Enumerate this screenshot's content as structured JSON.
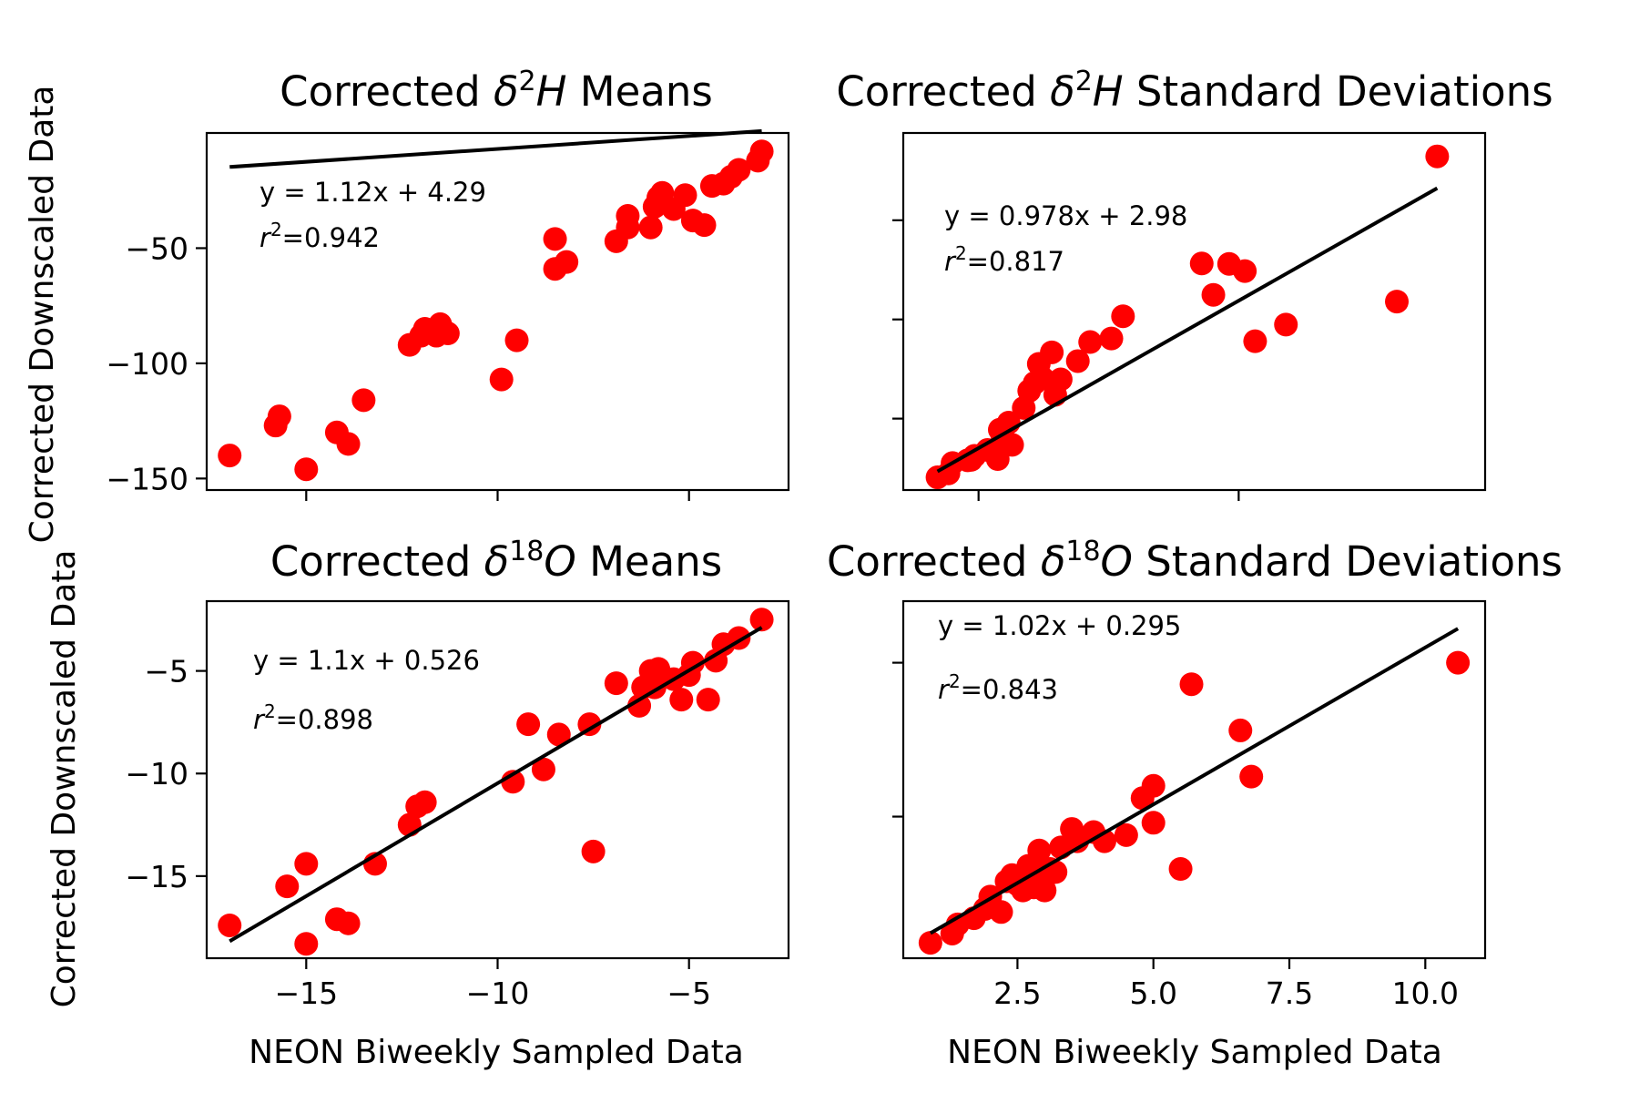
{
  "chart_data": [
    {
      "type": "scatter",
      "title_pre": "Corrected ",
      "title_var": "δ",
      "title_sup": "2",
      "title_isotope": "H",
      "title_post": " Means",
      "xlabel": "",
      "ylabel": "Corrected Downscaled Data",
      "xlim": [
        -17.6,
        -2.4
      ],
      "ylim": [
        -155,
        0
      ],
      "xticks": [
        -15,
        -10,
        -5
      ],
      "xtick_labels": [
        "",
        "",
        ""
      ],
      "yticks": [
        -50,
        -100,
        -150
      ],
      "ytick_labels": [
        "−50",
        "−100",
        "−150"
      ],
      "equation": "y = 1.12x + 4.29",
      "r2_label": "r",
      "r2_sup": "2",
      "r2_value": "=0.942",
      "fit": {
        "slope": 1.12,
        "intercept": 4.29,
        "x_range": [
          -17.0,
          -3.1
        ]
      },
      "x": [
        -17.0,
        -15.8,
        -15.7,
        -15.0,
        -14.2,
        -13.9,
        -13.5,
        -12.3,
        -12.0,
        -11.9,
        -11.6,
        -11.5,
        -11.3,
        -9.9,
        -9.5,
        -8.5,
        -8.5,
        -8.2,
        -6.9,
        -6.6,
        -6.6,
        -6.0,
        -5.9,
        -5.8,
        -5.7,
        -5.4,
        -5.1,
        -4.9,
        -4.6,
        -4.4,
        -4.1,
        -3.9,
        -3.7,
        -3.2,
        -3.1
      ],
      "y": [
        -140,
        -127,
        -123,
        -146,
        -130,
        -135,
        -116,
        -92,
        -88,
        -85,
        -88,
        -83,
        -87,
        -107,
        -90,
        -59,
        -46,
        -56,
        -47,
        -41,
        -36,
        -41,
        -32,
        -28,
        -26,
        -33,
        -27,
        -38,
        -40,
        -23,
        -22,
        -19,
        -16,
        -12,
        -8
      ]
    },
    {
      "type": "scatter",
      "title_pre": "Corrected ",
      "title_var": "δ",
      "title_sup": "2",
      "title_isotope": "H",
      "title_post": " Standard Deviations",
      "xlabel": "",
      "ylabel": "",
      "xlim": [
        8,
        93
      ],
      "ylim": [
        11,
        101
      ],
      "xticks": [
        19,
        57
      ],
      "xtick_labels": [
        "",
        ""
      ],
      "yticks": [
        29,
        54,
        79
      ],
      "ytick_labels": [
        "",
        "",
        ""
      ],
      "equation": "y = 0.978x + 2.98",
      "r2_label": "r",
      "r2_sup": "2",
      "r2_value": "=0.817",
      "fit": {
        "slope": 0.978,
        "intercept": 2.98,
        "x_range": [
          13,
          86
        ]
      },
      "x": [
        13,
        14.6,
        15.2,
        17.4,
        17.9,
        18.4,
        20.3,
        21.8,
        22.1,
        22.5,
        23.4,
        23.9,
        25.6,
        26.4,
        27.2,
        27.8,
        28.4,
        29.7,
        30.2,
        31.0,
        33.5,
        35.3,
        38.4,
        40.1,
        51.6,
        53.3,
        55.6,
        57.9,
        59.4,
        63.9,
        80.1,
        86.0
      ],
      "y": [
        14.2,
        15.2,
        17.8,
        18.5,
        18.6,
        19.6,
        21.1,
        18.8,
        26.2,
        24.4,
        28.0,
        22.4,
        31.7,
        36.0,
        38.0,
        42.8,
        39.1,
        45.7,
        35.0,
        38.9,
        43.5,
        48.3,
        49.2,
        54.8,
        68.1,
        60.2,
        68.0,
        66.2,
        48.5,
        52.7,
        58.5,
        95.1
      ]
    },
    {
      "type": "scatter",
      "title_pre": "Corrected ",
      "title_var": "δ",
      "title_sup": "18",
      "title_isotope": "O",
      "title_post": " Means",
      "xlabel": "NEON Biweekly Sampled Data",
      "ylabel": "Corrected Downscaled Data",
      "xlim": [
        -17.6,
        -2.4
      ],
      "ylim": [
        -19,
        -1.6
      ],
      "xticks": [
        -15,
        -10,
        -5
      ],
      "xtick_labels": [
        "−15",
        "−10",
        "−5"
      ],
      "yticks": [
        -5,
        -10,
        -15
      ],
      "ytick_labels": [
        "−5",
        "−10",
        "−15"
      ],
      "equation": "y = 1.1x + 0.526",
      "r2_label": "r",
      "r2_sup": "2",
      "r2_value": "=0.898",
      "fit": {
        "slope": 1.1,
        "intercept": 0.526,
        "x_range": [
          -17.0,
          -3.1
        ]
      },
      "x": [
        -17.0,
        -15.5,
        -15.0,
        -15.0,
        -14.2,
        -13.9,
        -13.2,
        -12.3,
        -12.1,
        -11.9,
        -9.6,
        -9.2,
        -8.8,
        -8.4,
        -7.6,
        -7.5,
        -6.9,
        -6.3,
        -6.2,
        -6.0,
        -5.9,
        -5.8,
        -5.4,
        -5.2,
        -5.0,
        -4.9,
        -4.5,
        -4.3,
        -4.1,
        -3.7,
        -3.1
      ],
      "y": [
        -17.4,
        -15.5,
        -14.4,
        -18.3,
        -17.1,
        -17.3,
        -14.4,
        -12.5,
        -11.6,
        -11.4,
        -10.4,
        -7.6,
        -9.8,
        -8.1,
        -7.6,
        -13.8,
        -5.6,
        -6.7,
        -5.8,
        -5.0,
        -5.8,
        -4.9,
        -5.4,
        -6.4,
        -5.2,
        -4.6,
        -6.4,
        -4.5,
        -3.7,
        -3.4,
        -2.5
      ]
    },
    {
      "type": "scatter",
      "title_pre": "Corrected ",
      "title_var": "δ",
      "title_sup": "18",
      "title_isotope": "O",
      "title_post": " Standard Deviations",
      "xlabel": "NEON Biweekly Sampled Data",
      "ylabel": "",
      "xlim": [
        0.4,
        11.1
      ],
      "ylim": [
        0.4,
        12.0
      ],
      "xticks": [
        2.5,
        5.0,
        7.5,
        10.0
      ],
      "xtick_labels": [
        "2.5",
        "5.0",
        "7.5",
        "10.0"
      ],
      "yticks": [
        5.0,
        10.0
      ],
      "ytick_labels": [
        "",
        ""
      ],
      "equation": "y = 1.02x + 0.295",
      "r2_label": "r",
      "r2_sup": "2",
      "r2_value": "=0.843",
      "fit": {
        "slope": 1.02,
        "intercept": 0.295,
        "x_range": [
          0.9,
          10.6
        ]
      },
      "x": [
        0.9,
        1.3,
        1.4,
        1.7,
        1.9,
        2.0,
        2.2,
        2.3,
        2.4,
        2.5,
        2.6,
        2.7,
        2.8,
        2.8,
        2.9,
        3.0,
        3.0,
        3.1,
        3.2,
        3.3,
        3.5,
        3.6,
        3.9,
        4.1,
        4.5,
        4.8,
        5.0,
        5.0,
        5.5,
        5.7,
        6.6,
        6.8,
        10.6
      ],
      "y": [
        0.9,
        1.2,
        1.5,
        1.7,
        2.0,
        2.4,
        1.9,
        2.9,
        3.1,
        2.8,
        2.6,
        3.4,
        3.3,
        2.7,
        3.9,
        3.0,
        2.6,
        3.3,
        3.2,
        4.0,
        4.6,
        4.2,
        4.5,
        4.2,
        4.4,
        5.6,
        6.0,
        4.8,
        3.3,
        9.3,
        7.8,
        6.3,
        10.0
      ]
    }
  ]
}
